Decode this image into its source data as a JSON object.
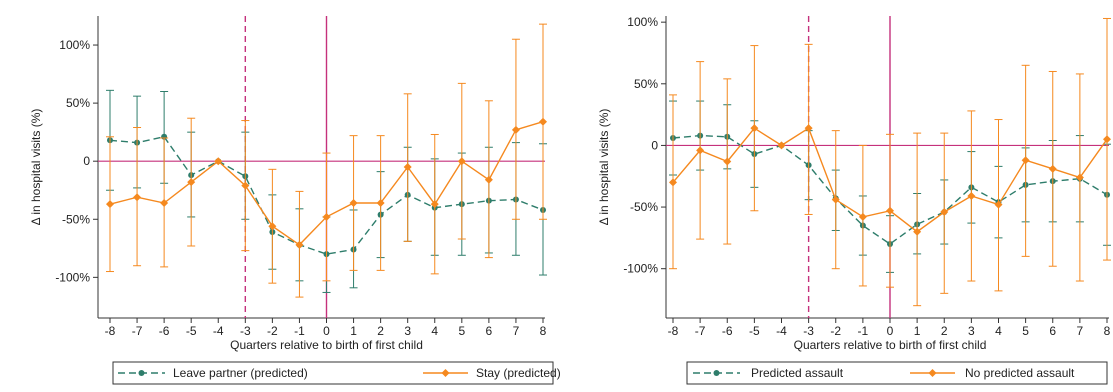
{
  "chart_data": [
    {
      "type": "line",
      "xlabel": "Quarters relative to birth of first child",
      "ylabel": "Δ in  hospital visits (%)",
      "x": [
        -8,
        -7,
        -6,
        -5,
        -4,
        -3,
        -2,
        -1,
        0,
        1,
        2,
        3,
        4,
        5,
        6,
        7,
        8
      ],
      "xlim": [
        -8,
        8
      ],
      "ylim": [
        -135,
        125
      ],
      "yticks": [
        100,
        50,
        0,
        -50,
        -100
      ],
      "ytick_labels": [
        "100%",
        "50%",
        "0",
        "-50%",
        "-100%"
      ],
      "xticks": [
        -8,
        -7,
        -6,
        -5,
        -4,
        -3,
        -2,
        -1,
        0,
        1,
        2,
        3,
        4,
        5,
        6,
        7,
        8
      ],
      "xtick_labels": [
        "-8",
        "-7",
        "-6",
        "-5",
        "-4",
        "-3",
        "-2",
        "-1",
        "0",
        "1",
        "2",
        "3",
        "4",
        "5",
        "6",
        "7",
        "8"
      ],
      "vlines": [
        {
          "x": -3,
          "style": "dashed"
        },
        {
          "x": 0,
          "style": "solid"
        }
      ],
      "hline": 0,
      "legend_position": "bottom",
      "series": [
        {
          "name": "Leave partner (predicted)",
          "color": "#2e7d6b",
          "style": "dashed",
          "marker": "circle",
          "values": [
            18,
            16,
            21,
            -12,
            0,
            -13,
            -61,
            -72,
            -80,
            -76,
            -46,
            -29,
            -40,
            -37,
            -34,
            -33,
            -42
          ],
          "ci_low": [
            -25,
            -23,
            -19,
            -48,
            0,
            -50,
            -93,
            -103,
            -113,
            -109,
            -83,
            -69,
            -81,
            -81,
            -79,
            -81,
            -98
          ],
          "ci_high": [
            61,
            56,
            60,
            25,
            0,
            25,
            -29,
            -41,
            -48,
            -42,
            -9,
            12,
            2,
            7,
            12,
            16,
            15
          ]
        },
        {
          "name": "Stay (predicted)",
          "color": "#f5891f",
          "style": "solid",
          "marker": "diamond",
          "values": [
            -37,
            -31,
            -36,
            -18,
            0,
            -21,
            -56,
            -72,
            -48,
            -36,
            -36,
            -5,
            -37,
            0,
            -16,
            27,
            34
          ],
          "ci_low": [
            -95,
            -90,
            -91,
            -73,
            0,
            -77,
            -105,
            -117,
            -103,
            -94,
            -94,
            -69,
            -97,
            -67,
            -83,
            -50,
            -50
          ],
          "ci_high": [
            21,
            29,
            20,
            37,
            0,
            35,
            -7,
            -26,
            7,
            22,
            22,
            58,
            23,
            67,
            52,
            105,
            118
          ]
        }
      ]
    },
    {
      "type": "line",
      "xlabel": "Quarters relative to birth of first child",
      "ylabel": "Δ in  hospital visits (%)",
      "x": [
        -8,
        -7,
        -6,
        -5,
        -4,
        -3,
        -2,
        -1,
        0,
        1,
        2,
        3,
        4,
        5,
        6,
        7,
        8
      ],
      "xlim": [
        -8,
        8
      ],
      "ylim": [
        -140,
        105
      ],
      "yticks": [
        100,
        50,
        0,
        -50,
        -100
      ],
      "ytick_labels": [
        "100%",
        "50%",
        "0",
        "-50%",
        "-100%"
      ],
      "xticks": [
        -8,
        -7,
        -6,
        -5,
        -4,
        -3,
        -2,
        -1,
        0,
        1,
        2,
        3,
        4,
        5,
        6,
        7,
        8
      ],
      "xtick_labels": [
        "-8",
        "-7",
        "-6",
        "-5",
        "-4",
        "-3",
        "-2",
        "-1",
        "0",
        "1",
        "2",
        "3",
        "4",
        "5",
        "6",
        "7",
        "8"
      ],
      "vlines": [
        {
          "x": -3,
          "style": "dashed"
        },
        {
          "x": 0,
          "style": "solid"
        }
      ],
      "hline": 0,
      "legend_position": "bottom",
      "series": [
        {
          "name": "Predicted assault",
          "color": "#2e7d6b",
          "style": "dashed",
          "marker": "circle",
          "values": [
            6,
            8,
            7,
            -7,
            0,
            -16,
            -43,
            -65,
            -80,
            -64,
            -54,
            -34,
            -46,
            -32,
            -29,
            -27,
            -40
          ],
          "ci_low": [
            -24,
            -20,
            -19,
            -34,
            0,
            -44,
            -69,
            -89,
            -103,
            -88,
            -80,
            -63,
            -75,
            -62,
            -62,
            -62,
            -81
          ],
          "ci_high": [
            36,
            36,
            33,
            20,
            0,
            12,
            -20,
            -41,
            -57,
            -39,
            -28,
            -5,
            -17,
            -2,
            4,
            8,
            1
          ]
        },
        {
          "name": "No predicted assault",
          "color": "#f5891f",
          "style": "solid",
          "marker": "diamond",
          "values": [
            -30,
            -4,
            -13,
            14,
            0,
            14,
            -44,
            -58,
            -53,
            -70,
            -54,
            -41,
            -48,
            -12,
            -19,
            -26,
            5
          ],
          "ci_low": [
            -100,
            -76,
            -80,
            -53,
            0,
            -56,
            -100,
            -114,
            -115,
            -130,
            -120,
            -110,
            -118,
            -90,
            -98,
            -110,
            -93
          ],
          "ci_high": [
            41,
            68,
            54,
            81,
            0,
            82,
            12,
            0,
            9,
            10,
            10,
            28,
            21,
            65,
            60,
            58,
            103
          ]
        }
      ]
    }
  ]
}
